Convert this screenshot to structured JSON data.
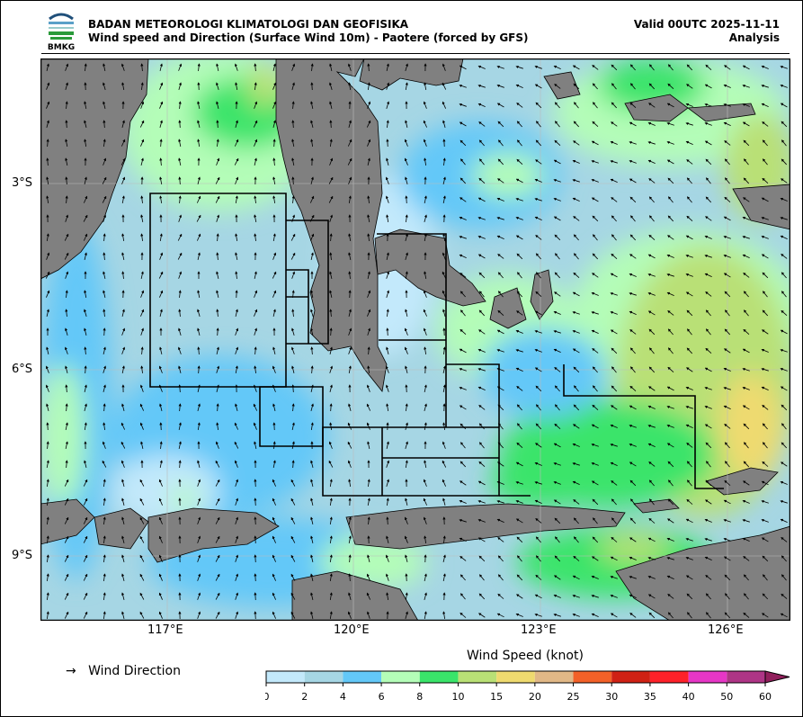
{
  "header": {
    "org": "BADAN METEOROLOGI KLIMATOLOGI DAN GEOFISIKA",
    "title": "Wind speed and Direction (Surface Wind 10m) - Paotere (forced by GFS)",
    "valid": "Valid 00UTC 2025-11-11",
    "kind": "Analysis",
    "logo_text": "BMKG"
  },
  "map": {
    "lon_ticks": [
      "117°E",
      "120°E",
      "123°E",
      "126°E"
    ],
    "lat_ticks": [
      "3°S",
      "6°S",
      "9°S"
    ],
    "extent": {
      "lon": [
        115,
        127
      ],
      "lat": [
        -10,
        -1
      ]
    },
    "land_color": "#808080"
  },
  "legend": {
    "arrow_glyph": "→",
    "direction_label": "Wind Direction",
    "colorbar_title": "Wind Speed (knot)",
    "ticks": [
      "0",
      "2",
      "4",
      "6",
      "8",
      "10",
      "15",
      "20",
      "25",
      "30",
      "35",
      "40",
      "50",
      "60"
    ],
    "colors": [
      "#c3e9fb",
      "#a6d6e4",
      "#63c8f8",
      "#b4fdb8",
      "#3ae46a",
      "#b9e076",
      "#efda6f",
      "#e1b887",
      "#f36128",
      "#cf2114",
      "#fe2129",
      "#e636c6",
      "#ae3586",
      "#911f5c"
    ]
  }
}
